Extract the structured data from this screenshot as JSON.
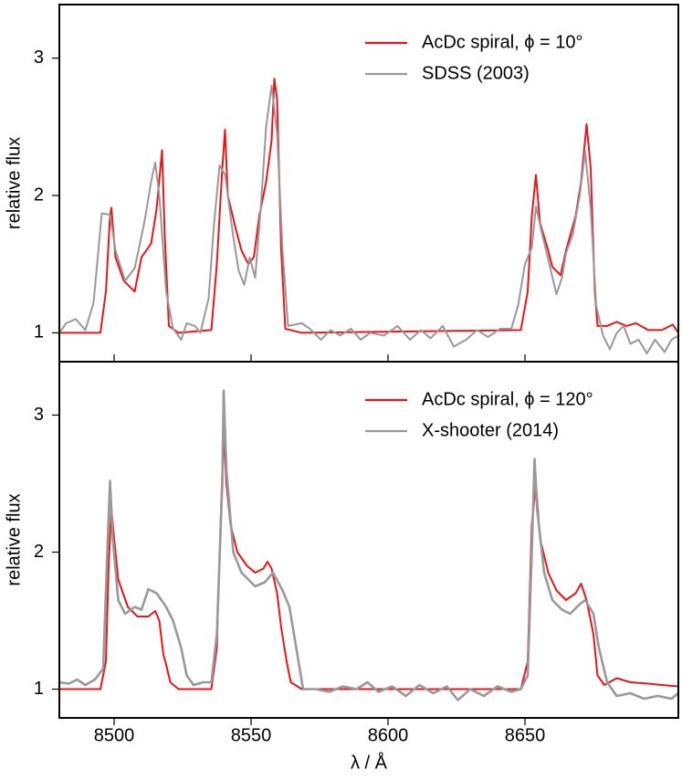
{
  "chart_data": [
    {
      "type": "line",
      "ylabel": "relative flux",
      "xlim": [
        8480,
        8706
      ],
      "ylim": [
        0.79,
        3.39
      ],
      "yticks": [
        1,
        2,
        3
      ],
      "xticks": [
        8500,
        8550,
        8600,
        8650
      ],
      "legend": "upper right",
      "series": [
        {
          "name": "AcDc spiral, ϕ = 10°",
          "color": "#e8161b",
          "x": [
            8480,
            8495,
            8497,
            8498.5,
            8499,
            8500.5,
            8503.5,
            8507.5,
            8510,
            8513.5,
            8515.5,
            8517.5,
            8518.5,
            8520,
            8523.5,
            8535.5,
            8537.5,
            8539.5,
            8540.5,
            8541.5,
            8544.5,
            8546.5,
            8549,
            8551,
            8553,
            8555.5,
            8557.5,
            8558.5,
            8559.5,
            8561,
            8562.5,
            8568.5,
            8648.5,
            8651,
            8652.5,
            8654,
            8655.5,
            8658.5,
            8660,
            8663,
            8665,
            8668.5,
            8670.5,
            8672.5,
            8674,
            8675.5,
            8676.5,
            8680,
            8683.5,
            8687,
            8690.5,
            8695,
            8700,
            8704,
            8706
          ],
          "values": [
            1.0,
            1.0,
            1.3,
            1.85,
            1.91,
            1.55,
            1.38,
            1.3,
            1.55,
            1.65,
            1.9,
            2.33,
            1.7,
            1.05,
            1.0,
            1.02,
            1.5,
            2.2,
            2.48,
            2.0,
            1.75,
            1.6,
            1.5,
            1.55,
            1.85,
            2.1,
            2.4,
            2.85,
            2.7,
            1.6,
            1.03,
            1.0,
            1.02,
            1.3,
            1.85,
            2.15,
            1.8,
            1.6,
            1.48,
            1.42,
            1.6,
            1.85,
            2.1,
            2.52,
            2.2,
            1.3,
            1.05,
            1.05,
            1.08,
            1.05,
            1.07,
            1.02,
            1.02,
            1.06,
            1.0
          ]
        },
        {
          "name": "SDSS (2003)",
          "color": "#999999",
          "x": [
            8480,
            8482.5,
            8486,
            8489.5,
            8492.5,
            8495.5,
            8498.5,
            8500.5,
            8504,
            8507.5,
            8511,
            8513.5,
            8515,
            8516.5,
            8519,
            8521.5,
            8524.5,
            8526.5,
            8529.5,
            8531.5,
            8534.5,
            8536.5,
            8538.5,
            8540.5,
            8543.5,
            8545.5,
            8547.5,
            8549.5,
            8551.5,
            8553.5,
            8555.5,
            8557.5,
            8559.5,
            8561.5,
            8563.5,
            8568.5,
            8571.5,
            8575.5,
            8579,
            8582.5,
            8586.5,
            8590,
            8593.5,
            8598.5,
            8603.5,
            8608,
            8612,
            8615.5,
            8620,
            8624,
            8628.5,
            8632.5,
            8636.5,
            8641,
            8645,
            8647.5,
            8650,
            8652.5,
            8654,
            8656.5,
            8659.5,
            8661.5,
            8663.5,
            8665,
            8667.5,
            8670,
            8672,
            8674,
            8676,
            8678.5,
            8681,
            8683.5,
            8686,
            8688.5,
            8691.5,
            8694.5,
            8697.5,
            8701,
            8703.5,
            8706
          ],
          "values": [
            1.0,
            1.07,
            1.1,
            1.02,
            1.22,
            1.87,
            1.86,
            1.6,
            1.38,
            1.47,
            1.8,
            2.1,
            2.24,
            2.0,
            1.3,
            1.03,
            0.95,
            1.07,
            1.05,
            1.0,
            1.25,
            1.8,
            2.22,
            2.15,
            1.7,
            1.45,
            1.35,
            1.55,
            1.4,
            1.9,
            2.5,
            2.8,
            2.45,
            1.6,
            1.05,
            1.07,
            1.03,
            0.95,
            1.02,
            0.98,
            1.03,
            0.95,
            1.0,
            0.98,
            1.05,
            0.95,
            1.02,
            0.96,
            1.05,
            0.9,
            0.95,
            1.02,
            0.97,
            1.03,
            1.03,
            1.2,
            1.5,
            1.62,
            1.92,
            1.7,
            1.45,
            1.28,
            1.4,
            1.58,
            1.72,
            2.0,
            2.32,
            1.9,
            1.2,
            0.98,
            0.88,
            1.0,
            1.05,
            0.92,
            0.95,
            0.85,
            0.95,
            0.86,
            0.95,
            0.98
          ]
        }
      ]
    },
    {
      "type": "line",
      "ylabel": "relative flux",
      "xlabel": "λ / Å",
      "xlim": [
        8480,
        8706
      ],
      "ylim": [
        0.79,
        3.39
      ],
      "yticks": [
        1,
        2,
        3
      ],
      "xticks": [
        8500,
        8550,
        8600,
        8650
      ],
      "legend": "upper right",
      "series": [
        {
          "name": "AcDc spiral, ϕ = 120°",
          "color": "#e8161b",
          "x": [
            8480,
            8495,
            8497,
            8498,
            8499,
            8500,
            8501.5,
            8505,
            8508.5,
            8512.5,
            8515,
            8516.5,
            8518,
            8519,
            8520.5,
            8523.5,
            8535.5,
            8537.5,
            8539,
            8540,
            8541,
            8542.5,
            8545,
            8548.5,
            8551.5,
            8554.5,
            8556,
            8557.5,
            8559.5,
            8561,
            8563,
            8564.5,
            8568.5,
            8648.5,
            8651,
            8652.5,
            8654,
            8655.5,
            8658.5,
            8661.5,
            8665,
            8668.5,
            8670.5,
            8672.5,
            8675,
            8676.5,
            8679,
            8683.5,
            8688.5,
            8695,
            8700,
            8706
          ],
          "values": [
            1.0,
            1.0,
            1.2,
            1.9,
            2.32,
            2.1,
            1.8,
            1.6,
            1.53,
            1.53,
            1.57,
            1.5,
            1.25,
            1.18,
            1.05,
            1.0,
            1.0,
            1.3,
            2.3,
            2.85,
            2.5,
            2.2,
            2.0,
            1.9,
            1.85,
            1.88,
            1.93,
            1.88,
            1.7,
            1.45,
            1.2,
            1.05,
            1.0,
            1.0,
            1.2,
            2.2,
            2.5,
            2.1,
            1.85,
            1.72,
            1.65,
            1.7,
            1.77,
            1.65,
            1.4,
            1.1,
            1.03,
            1.08,
            1.05,
            1.04,
            1.03,
            1.02
          ]
        },
        {
          "name": "X-shooter (2014)",
          "color": "#999999",
          "x": [
            8480,
            8483.5,
            8486.5,
            8489.5,
            8493,
            8496,
            8497.5,
            8498.5,
            8499.5,
            8501.5,
            8504,
            8507.5,
            8510,
            8512.5,
            8515.5,
            8519,
            8521.5,
            8524.5,
            8526.5,
            8529,
            8532.5,
            8535.5,
            8537.5,
            8539.5,
            8540,
            8541,
            8543.5,
            8546.5,
            8549,
            8551.5,
            8555,
            8558,
            8561.5,
            8564,
            8566.5,
            8569,
            8573.5,
            8578.5,
            8583.5,
            8588.5,
            8592.5,
            8596.5,
            8601.5,
            8606.5,
            8611.5,
            8616.5,
            8621.5,
            8625.5,
            8630,
            8635,
            8640,
            8645,
            8648.5,
            8651,
            8652.5,
            8653.5,
            8654.5,
            8657,
            8660,
            8663.5,
            8666.5,
            8670,
            8672,
            8675,
            8677,
            8680,
            8683.5,
            8688.5,
            8693.5,
            8698.5,
            8703.5,
            8706
          ],
          "values": [
            1.05,
            1.04,
            1.07,
            1.03,
            1.07,
            1.15,
            2.0,
            2.52,
            2.1,
            1.65,
            1.55,
            1.6,
            1.58,
            1.73,
            1.7,
            1.6,
            1.5,
            1.3,
            1.1,
            1.03,
            1.05,
            1.05,
            1.4,
            2.5,
            3.18,
            2.6,
            2.0,
            1.85,
            1.8,
            1.75,
            1.78,
            1.85,
            1.72,
            1.6,
            1.3,
            1.0,
            1.0,
            0.98,
            1.02,
            1.0,
            1.05,
            0.98,
            1.02,
            0.95,
            1.03,
            0.97,
            1.02,
            0.92,
            1.0,
            0.95,
            1.02,
            0.98,
            1.0,
            1.1,
            2.0,
            2.68,
            2.3,
            1.85,
            1.65,
            1.58,
            1.55,
            1.62,
            1.65,
            1.55,
            1.3,
            1.05,
            0.95,
            0.97,
            0.93,
            0.95,
            0.93,
            0.97
          ]
        }
      ]
    }
  ]
}
